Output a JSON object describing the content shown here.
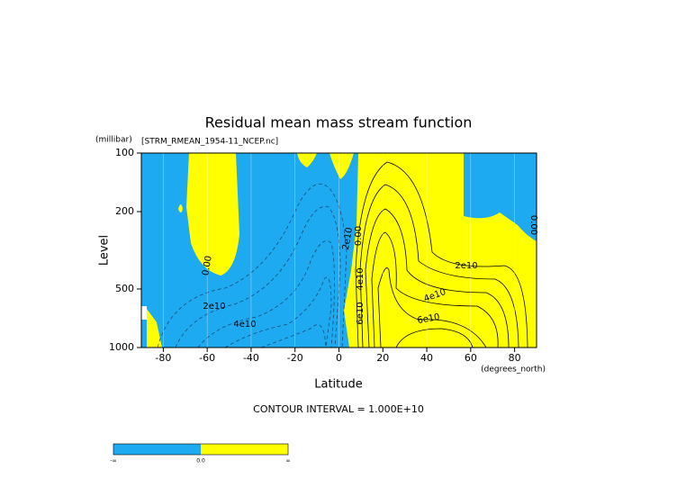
{
  "chart_data": {
    "type": "contour",
    "title": "Residual mean mass stream function",
    "subtitle": "[STRM_RMEAN_1954-11_NCEP.nc]",
    "y_unit": "(millibar)",
    "x_unit": "(degrees_north)",
    "x_label": "Latitude",
    "y_label": "Level",
    "footer": "CONTOUR INTERVAL = 1.000E+10",
    "xlim": [
      -90,
      90
    ],
    "xticks": [
      -80,
      -60,
      -40,
      -20,
      0,
      20,
      40,
      60,
      80
    ],
    "ylim": [
      1000,
      100
    ],
    "yticks": [
      100,
      200,
      500,
      1000
    ],
    "ylog": true,
    "negative_color": "#1eaaf0",
    "positive_color": "#ffff00",
    "contour_labels": [
      "0.00",
      "2e10",
      "4e10",
      "2e10",
      "0.00",
      "4e10",
      "6e10",
      "2e10",
      "4e10",
      "6e10",
      "0.00"
    ],
    "colorbar": {
      "labels": [
        "-∞",
        "0.0",
        "∞"
      ]
    }
  }
}
